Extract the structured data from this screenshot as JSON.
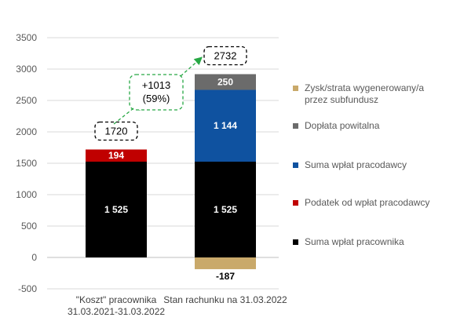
{
  "chart_data": {
    "type": "bar",
    "stacked": true,
    "categories": [
      "\"Koszt\" pracownika\n31.03.2021-31.03.2022",
      "Stan rachunku na 31.03.2022"
    ],
    "series": [
      {
        "name": "Suma wpłat pracownika",
        "values": [
          1525,
          1525
        ],
        "labels": [
          "1 525",
          "1 525"
        ],
        "color": "#000000"
      },
      {
        "name": "Podatek od wpłat pracodawcy",
        "values": [
          194,
          0
        ],
        "labels": [
          "194",
          ""
        ],
        "color": "#c00000"
      },
      {
        "name": "Suma wpłat pracodawcy",
        "values": [
          0,
          1144
        ],
        "labels": [
          "",
          "1 144"
        ],
        "color": "#0f52a0"
      },
      {
        "name": "Dopłata powitalna",
        "values": [
          0,
          250
        ],
        "labels": [
          "",
          "250"
        ],
        "color": "#6b6b6b"
      },
      {
        "name": "Zysk/strata wygenerowany/a\nprzez subfundusz",
        "values": [
          0,
          -187
        ],
        "labels": [
          "",
          "-187"
        ],
        "color": "#c9a96a"
      }
    ],
    "totals": [
      "1720",
      "2732"
    ],
    "delta": {
      "line1": "+1013",
      "line2": "(59%)"
    },
    "yticks": [
      "-500",
      "0",
      "500",
      "1000",
      "1500",
      "2000",
      "2500",
      "3000",
      "3500"
    ],
    "ylim": [
      -500,
      3500
    ],
    "grid": true,
    "legend_position": "right",
    "legend_order": [
      4,
      3,
      2,
      1,
      0
    ]
  }
}
